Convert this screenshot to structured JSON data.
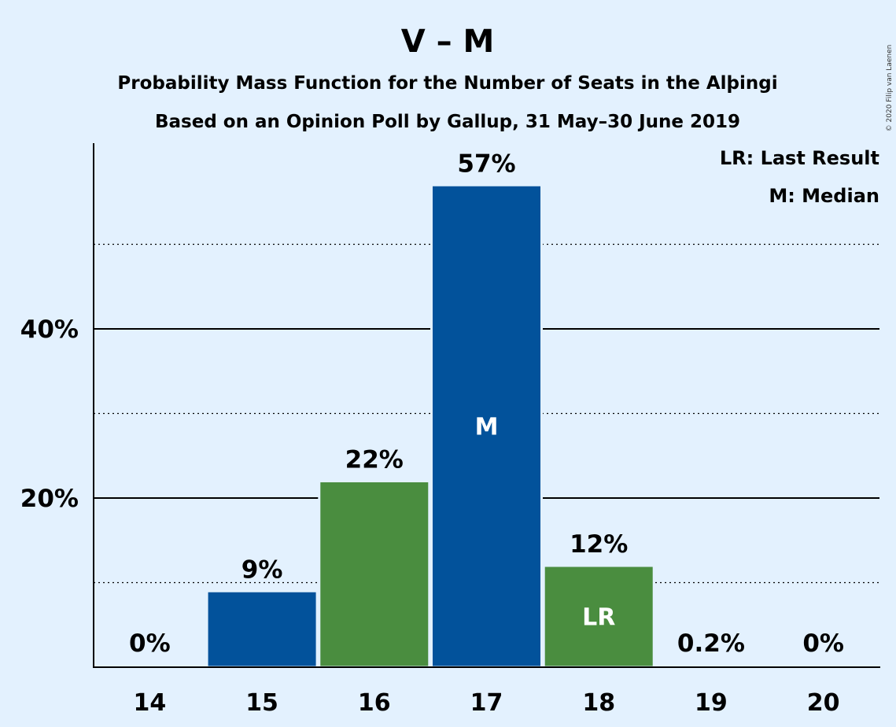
{
  "chart_data": {
    "type": "bar",
    "title": "V – M",
    "subtitle_1": "Probability Mass Function for the Number of Seats in the Alþingi",
    "subtitle_2": "Based on an Opinion Poll by Gallup, 31 May–30 June 2019",
    "xlabel": "",
    "ylabel": "",
    "categories": [
      "14",
      "15",
      "16",
      "17",
      "18",
      "19",
      "20"
    ],
    "values": [
      0,
      9,
      22,
      57,
      12,
      0.2,
      0
    ],
    "data_labels": [
      "0%",
      "9%",
      "22%",
      "57%",
      "12%",
      "0.2%",
      "0%"
    ],
    "bar_colors": [
      "#02529b",
      "#02529b",
      "#4a8d3f",
      "#02529b",
      "#4a8d3f",
      "#02529b",
      "#02529b"
    ],
    "bar_markers": {
      "3": "M",
      "4": "LR"
    },
    "ylim": [
      0,
      62
    ],
    "yticks": [
      {
        "value": 20,
        "label": "20%"
      },
      {
        "value": 40,
        "label": "40%"
      }
    ],
    "minor_gridlines": [
      10,
      30,
      50
    ],
    "grid": true,
    "legend_position": "top-right",
    "legend": [
      "LR: Last Result",
      "M: Median"
    ],
    "copyright": "© 2020 Filip van Laenen",
    "colors": {
      "background": "#e3f1fe",
      "blue": "#02529b",
      "green": "#4a8d3f"
    }
  }
}
